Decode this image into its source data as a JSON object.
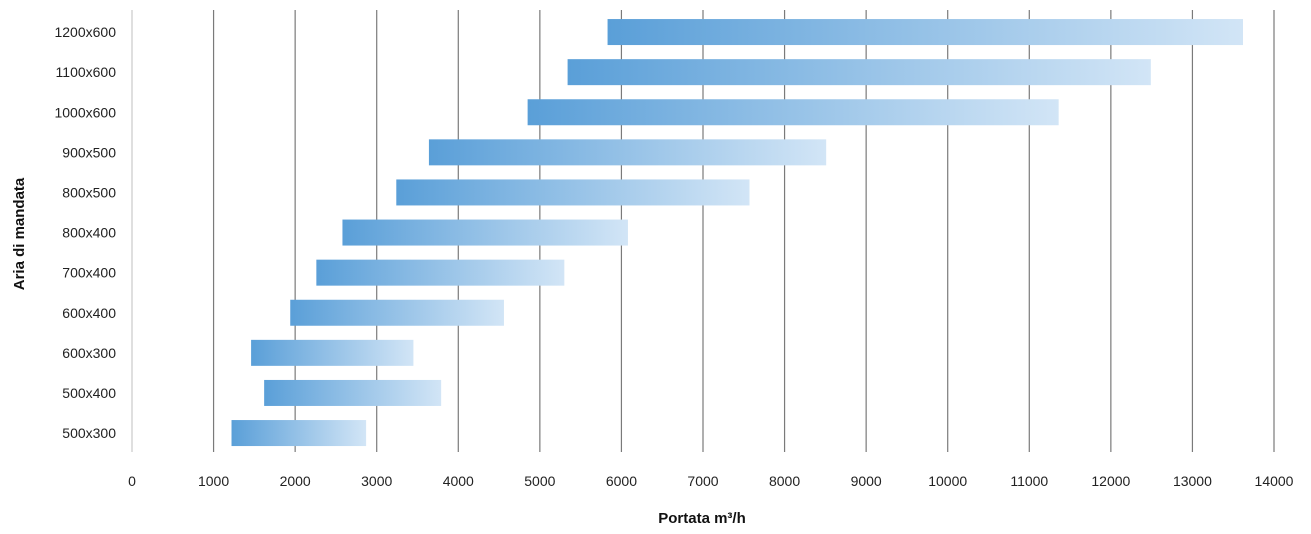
{
  "chart_data": {
    "type": "bar",
    "orientation": "horizontal",
    "title": "",
    "xlabel": "Portata m³/h",
    "ylabel": "Aria di mandata",
    "xlim": [
      0,
      14000
    ],
    "xticks": [
      "0",
      "1000",
      "2000",
      "3000",
      "4000",
      "5000",
      "6000",
      "7000",
      "8000",
      "9000",
      "10000",
      "11000",
      "12000",
      "13000",
      "14000"
    ],
    "grid": "vertical",
    "categories": [
      "1200x600",
      "1100x600",
      "1000x600",
      "900x500",
      "800x500",
      "800x400",
      "700x400",
      "600x400",
      "600x300",
      "500x400",
      "500x300"
    ],
    "ranges": [
      [
        5830,
        13620
      ],
      [
        5340,
        12490
      ],
      [
        4850,
        11360
      ],
      [
        3640,
        8510
      ],
      [
        3240,
        7570
      ],
      [
        2580,
        6080
      ],
      [
        2260,
        5300
      ],
      [
        1940,
        4560
      ],
      [
        1460,
        3450
      ],
      [
        1620,
        3790
      ],
      [
        1220,
        2870
      ]
    ],
    "colors": {
      "bar_start": "#5a9fd8",
      "bar_end": "#d2e5f6",
      "grid": "#7a7a7a"
    }
  }
}
